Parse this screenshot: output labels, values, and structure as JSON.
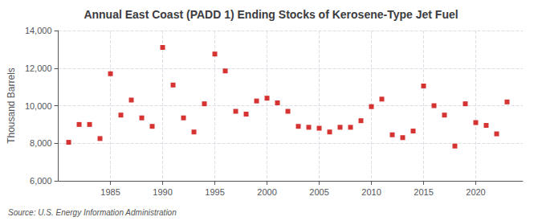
{
  "chart_data": {
    "type": "scatter",
    "title": "Annual East Coast (PADD 1) Ending Stocks of Kerosene-Type Jet Fuel",
    "ylabel": "Thousand Barrels",
    "annotation": "Source: U.S. Energy Information Administration",
    "x": [
      1981,
      1982,
      1983,
      1984,
      1985,
      1986,
      1987,
      1988,
      1989,
      1990,
      1991,
      1992,
      1993,
      1994,
      1995,
      1996,
      1997,
      1998,
      1999,
      2000,
      2001,
      2002,
      2003,
      2004,
      2005,
      2006,
      2007,
      2008,
      2009,
      2010,
      2011,
      2012,
      2013,
      2014,
      2015,
      2016,
      2017,
      2018,
      2019,
      2020,
      2021,
      2022,
      2023
    ],
    "values": [
      8050,
      9000,
      9000,
      8250,
      11700,
      9500,
      10300,
      9350,
      8900,
      13100,
      11100,
      9350,
      8600,
      10100,
      12750,
      11850,
      9700,
      9550,
      10250,
      10400,
      10150,
      9700,
      8900,
      8850,
      8800,
      8600,
      8850,
      8850,
      9200,
      9950,
      10350,
      8450,
      8300,
      8650,
      11050,
      10000,
      9500,
      7850,
      10100,
      9100,
      8950,
      8500,
      10200
    ],
    "color": "#cc0000",
    "marker": "square",
    "xlim": [
      1980,
      2024.5
    ],
    "xticks": [
      1985,
      1990,
      1995,
      2000,
      2005,
      2010,
      2015,
      2020
    ],
    "ylim": [
      6000,
      14000
    ],
    "yticks": [
      {
        "value": 6000,
        "label": "6,000"
      },
      {
        "value": 8000,
        "label": "8,000"
      },
      {
        "value": 10000,
        "label": "10,000"
      },
      {
        "value": 12000,
        "label": "12,000"
      },
      {
        "value": 14000,
        "label": "14,000"
      }
    ],
    "grid": true
  }
}
